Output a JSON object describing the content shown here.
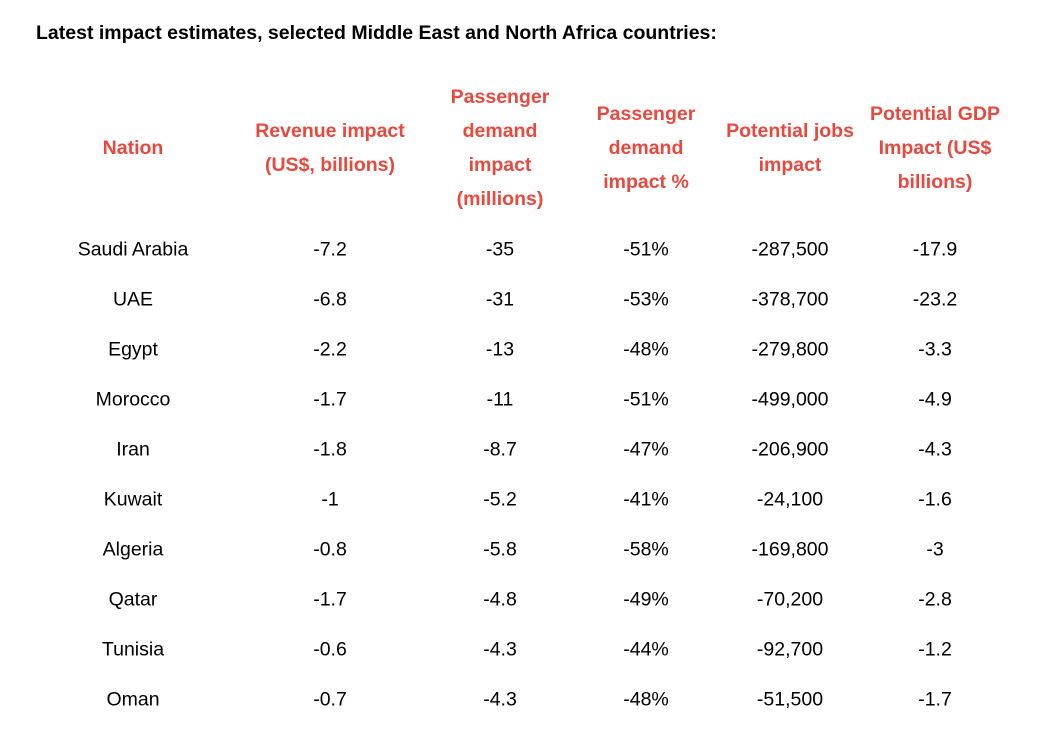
{
  "title": "Latest impact estimates, selected Middle East and North Africa countries:",
  "table": {
    "headers": [
      [
        "Nation"
      ],
      [
        "Revenue impact",
        "(US$, billions)"
      ],
      [
        "Passenger",
        "demand",
        "impact",
        "(millions)"
      ],
      [
        "Passenger",
        "demand",
        "impact %"
      ],
      [
        "Potential jobs",
        "impact"
      ],
      [
        "Potential GDP",
        "Impact (US$",
        "billions)"
      ]
    ],
    "rows": [
      [
        "Saudi Arabia",
        "-7.2",
        "-35",
        "-51%",
        "-287,500",
        "-17.9"
      ],
      [
        "UAE",
        "-6.8",
        "-31",
        "-53%",
        "-378,700",
        "-23.2"
      ],
      [
        "Egypt",
        "-2.2",
        "-13",
        "-48%",
        "-279,800",
        "-3.3"
      ],
      [
        "Morocco",
        "-1.7",
        "-11",
        "-51%",
        "-499,000",
        "-4.9"
      ],
      [
        "Iran",
        "-1.8",
        "-8.7",
        "-47%",
        "-206,900",
        "-4.3"
      ],
      [
        "Kuwait",
        "-1",
        "-5.2",
        "-41%",
        "-24,100",
        "-1.6"
      ],
      [
        "Algeria",
        "-0.8",
        "-5.8",
        "-58%",
        "-169,800",
        "-3"
      ],
      [
        "Qatar",
        "-1.7",
        "-4.8",
        "-49%",
        "-70,200",
        "-2.8"
      ],
      [
        "Tunisia",
        "-0.6",
        "-4.3",
        "-44%",
        "-92,700",
        "-1.2"
      ],
      [
        "Oman",
        "-0.7",
        "-4.3",
        "-48%",
        "-51,500",
        "-1.7"
      ]
    ]
  }
}
